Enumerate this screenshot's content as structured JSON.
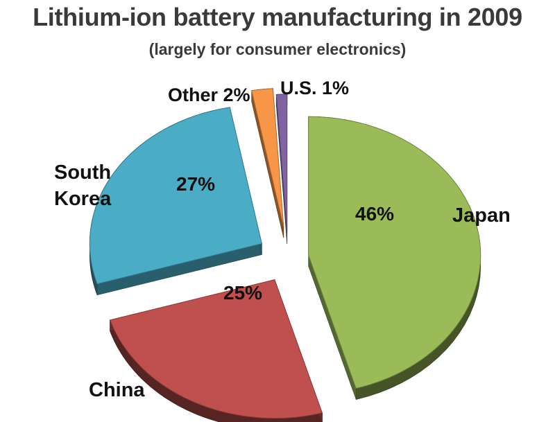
{
  "chart_data": {
    "type": "pie",
    "title": "Lithium-ion battery manufacturing in 2009",
    "subtitle": "(largely for consumer electronics)",
    "slices": [
      {
        "category": "Japan",
        "value": 46,
        "label": "46%",
        "color": "#9bbb59"
      },
      {
        "category": "China",
        "value": 25,
        "label": "25%",
        "color": "#c0504d"
      },
      {
        "category": "South Korea",
        "value": 27,
        "label": "27%",
        "color": "#4bacc6"
      },
      {
        "category": "Other",
        "value": 2,
        "label": "Other 2%",
        "color": "#f79646"
      },
      {
        "category": "U.S.",
        "value": 1,
        "label": "U.S. 1%",
        "color": "#8064a2"
      }
    ],
    "category_labels": {
      "japan": "Japan",
      "china": "China",
      "south_korea_line1": "South",
      "south_korea_line2": "Korea"
    }
  }
}
